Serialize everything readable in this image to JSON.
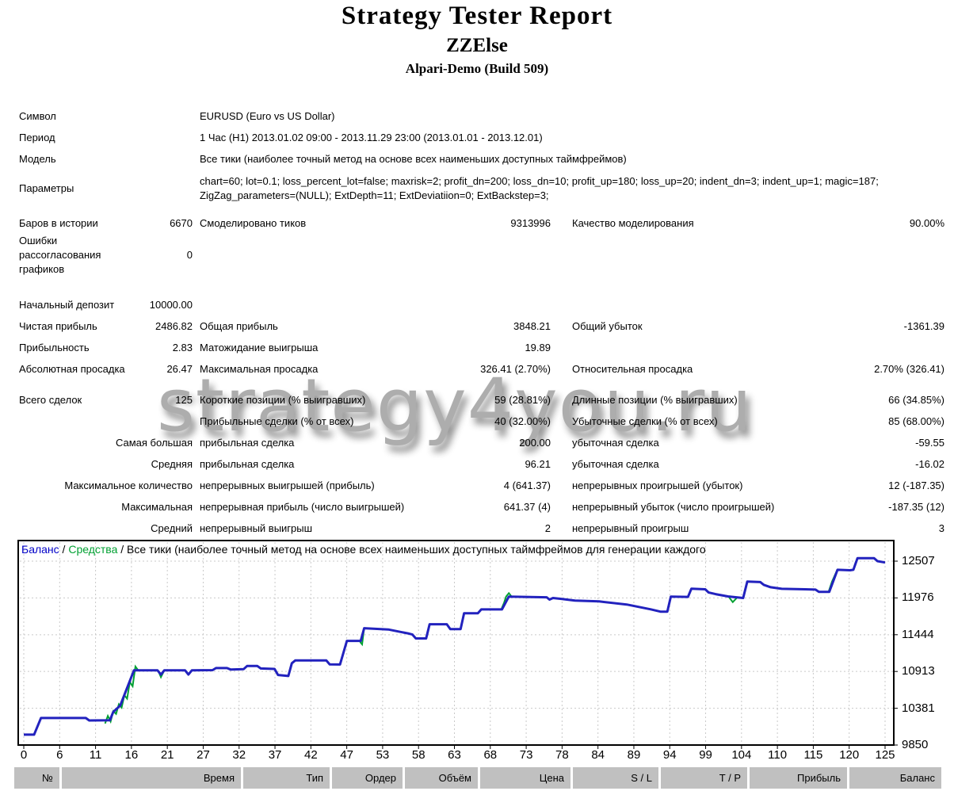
{
  "report": {
    "title": "Strategy Tester Report",
    "ea_name": "ZZElse",
    "server": "Alpari-Demo (Build 509)"
  },
  "watermark": "strategy4you.ru",
  "stats": {
    "sections": [
      {
        "rows": [
          {
            "l1": "Символ",
            "wide": "EURUSD (Euro vs US Dollar)"
          },
          {
            "l1": "Период",
            "wide": "1 Час (H1) 2013.01.02 09:00 - 2013.11.29 23:00 (2013.01.01 - 2013.12.01)"
          },
          {
            "l1": "Модель",
            "wide": "Все тики (наиболее точный метод на основе всех наименьших доступных таймфреймов)"
          },
          {
            "l1": "Параметры",
            "wide": "chart=60; lot=0.1; loss_percent_lot=false; maxrisk=2; profit_dn=200; loss_dn=10; profit_up=180; loss_up=20; indent_dn=3; indent_up=1; magic=187; ZigZag_parameters=(NULL); ExtDepth=11; ExtDeviatiion=0; ExtBackstep=3;",
            "h": 48,
            "widemulti": true
          }
        ]
      },
      {
        "rows": [
          {
            "l1": "Баров в истории",
            "v1": "6670",
            "l2": "Смоделировано тиков",
            "v2": "9313996",
            "l3": "Качество моделирования",
            "v3": "90.00%"
          },
          {
            "l1": "Ошибки рассогласования графиков",
            "v1": "0",
            "h": 54,
            "l1multi": true
          }
        ]
      },
      {
        "rows": [
          {
            "l1": "Начальный депозит",
            "v1": "10000.00"
          },
          {
            "l1": "Чистая прибыль",
            "v1": "2486.82",
            "l2": "Общая прибыль",
            "v2": "3848.21",
            "l3": "Общий убыток",
            "v3": "-1361.39"
          },
          {
            "l1": "Прибыльность",
            "v1": "2.83",
            "l2": "Матожидание выигрыша",
            "v2": "19.89"
          },
          {
            "l1": "Абсолютная просадка",
            "v1": "26.47",
            "l2": "Максимальная просадка",
            "v2": "326.41 (2.70%)",
            "l3": "Относительная просадка",
            "v3": "2.70% (326.41)"
          }
        ]
      },
      {
        "rows": [
          {
            "l1": "Всего сделок",
            "v1": "125",
            "l2": "Короткие позиции (% выигравших)",
            "v2": "59 (28.81%)",
            "l3": "Длинные позиции (% выигравших)",
            "v3": "66 (34.85%)"
          },
          {
            "l2": "Прибыльные сделки (% от всех)",
            "v2": "40 (32.00%)",
            "l3": "Убыточные сделки (% от всех)",
            "v3": "85 (68.00%)"
          },
          {
            "l1": "Самая большая",
            "l1r": true,
            "l2": "прибыльная сделка",
            "v2": "200.00",
            "l3": "убыточная сделка",
            "v3": "-59.55"
          },
          {
            "l1": "Средняя",
            "l1r": true,
            "l2": "прибыльная сделка",
            "v2": "96.21",
            "l3": "убыточная сделка",
            "v3": "-16.02"
          },
          {
            "l1": "Максимальное количество",
            "l1r": true,
            "l2": "непрерывных выигрышей (прибыль)",
            "v2": "4 (641.37)",
            "l3": "непрерывных проигрышей (убыток)",
            "v3": "12 (-187.35)"
          },
          {
            "l1": "Максимальная",
            "l1r": true,
            "l2": "непрерывная прибыль (число выигрышей)",
            "v2": "641.37 (4)",
            "l3": "непрерывный убыток (число проигрышей)",
            "v3": "-187.35 (12)"
          },
          {
            "l1": "Средний",
            "l1r": true,
            "l2": "непрерывный выигрыш",
            "v2": "2",
            "l3": "непрерывный проигрыш",
            "v3": "3"
          }
        ]
      }
    ]
  },
  "chart_data": {
    "type": "line",
    "legend": {
      "balance": "Баланс",
      "separator": " / ",
      "equity": "Средства",
      "model": "Все тики (наиболее точный метод на основе всех наименьших доступных таймфреймов для генерации каждого"
    },
    "colors": {
      "balance_line": "#2222be",
      "equity_line": "#00a032",
      "grid": "#c9c9c9",
      "border": "#000000",
      "legend_balance": "#0000c8",
      "legend_equity": "#00a032"
    },
    "x_ticks": [
      "0",
      "6",
      "11",
      "16",
      "21",
      "27",
      "32",
      "37",
      "42",
      "47",
      "53",
      "58",
      "63",
      "68",
      "73",
      "78",
      "84",
      "89",
      "94",
      "99",
      "104",
      "110",
      "115",
      "120",
      "125"
    ],
    "y_ticks": [
      12507,
      11976,
      11444,
      10913,
      10381,
      9850
    ],
    "x_range": [
      0,
      125
    ],
    "y_range": [
      9850,
      12792
    ],
    "series": [
      {
        "name": "Баланс",
        "points": [
          [
            0,
            10000
          ],
          [
            1.5,
            10000
          ],
          [
            2.5,
            10240
          ],
          [
            9,
            10240
          ],
          [
            9.5,
            10205
          ],
          [
            12.5,
            10208
          ],
          [
            13,
            10330
          ],
          [
            14,
            10420
          ],
          [
            16,
            10930
          ],
          [
            19.4,
            10930
          ],
          [
            19.9,
            10868
          ],
          [
            20.4,
            10930
          ],
          [
            23.4,
            10930
          ],
          [
            23.9,
            10868
          ],
          [
            24.4,
            10930
          ],
          [
            27.4,
            10932
          ],
          [
            27.9,
            10962
          ],
          [
            29.5,
            10962
          ],
          [
            30,
            10942
          ],
          [
            31.9,
            10946
          ],
          [
            32.4,
            10992
          ],
          [
            33.9,
            10992
          ],
          [
            34.4,
            10956
          ],
          [
            36.4,
            10950
          ],
          [
            36.9,
            10862
          ],
          [
            38.4,
            10848
          ],
          [
            38.9,
            11032
          ],
          [
            39.4,
            11072
          ],
          [
            43.9,
            11072
          ],
          [
            44.4,
            11016
          ],
          [
            45.9,
            11014
          ],
          [
            46.9,
            11355
          ],
          [
            48.9,
            11355
          ],
          [
            49.4,
            11538
          ],
          [
            52.9,
            11520
          ],
          [
            55.9,
            11460
          ],
          [
            56.4,
            11446
          ],
          [
            56.9,
            11390
          ],
          [
            58.4,
            11390
          ],
          [
            58.9,
            11595
          ],
          [
            61.4,
            11595
          ],
          [
            61.9,
            11526
          ],
          [
            63.4,
            11526
          ],
          [
            63.9,
            11754
          ],
          [
            65.9,
            11754
          ],
          [
            66.4,
            11810
          ],
          [
            69.4,
            11810
          ],
          [
            70.4,
            11995
          ],
          [
            75.9,
            11985
          ],
          [
            76.3,
            11952
          ],
          [
            76.8,
            11975
          ],
          [
            78,
            11962
          ],
          [
            80,
            11937
          ],
          [
            83.5,
            11925
          ],
          [
            87.5,
            11880
          ],
          [
            91,
            11811
          ],
          [
            92.4,
            11777
          ],
          [
            93.4,
            11777
          ],
          [
            93.9,
            11994
          ],
          [
            96.4,
            11990
          ],
          [
            96.9,
            12110
          ],
          [
            98.9,
            12100
          ],
          [
            99.4,
            12053
          ],
          [
            100.4,
            12030
          ],
          [
            102.2,
            11997
          ],
          [
            104.4,
            11975
          ],
          [
            105,
            12211
          ],
          [
            106.9,
            12205
          ],
          [
            107.4,
            12165
          ],
          [
            108.4,
            12130
          ],
          [
            110,
            12107
          ],
          [
            113.4,
            12100
          ],
          [
            114.9,
            12096
          ],
          [
            115.4,
            12064
          ],
          [
            116.9,
            12064
          ],
          [
            118.1,
            12382
          ],
          [
            119.9,
            12375
          ],
          [
            120.4,
            12382
          ],
          [
            121,
            12550
          ],
          [
            123.4,
            12550
          ],
          [
            123.9,
            12507
          ],
          [
            125,
            12487
          ]
        ]
      },
      {
        "name": "Средства",
        "segments": [
          [
            [
              11.8,
              10160
            ],
            [
              12.2,
              10270
            ],
            [
              12.6,
              10190
            ],
            [
              13,
              10340
            ],
            [
              13.4,
              10300
            ],
            [
              13.8,
              10440
            ],
            [
              14.2,
              10390
            ],
            [
              14.6,
              10570
            ],
            [
              15,
              10520
            ],
            [
              15.4,
              10760
            ],
            [
              15.8,
              10700
            ],
            [
              16.2,
              10985
            ],
            [
              16.6,
              10930
            ]
          ],
          [
            [
              19.5,
              10925
            ],
            [
              19.9,
              10830
            ],
            [
              20.4,
              10930
            ]
          ],
          [
            [
              48.8,
              11340
            ],
            [
              49.1,
              11305
            ],
            [
              49.4,
              11538
            ]
          ],
          [
            [
              69.3,
              11810
            ],
            [
              69.7,
              11905
            ],
            [
              70,
              11995
            ],
            [
              70.4,
              12045
            ],
            [
              70.8,
              11995
            ]
          ],
          [
            [
              102.3,
              11993
            ],
            [
              102.9,
              11915
            ],
            [
              103.5,
              11978
            ]
          ],
          [
            [
              116.8,
              12064
            ],
            [
              117.3,
              12210
            ],
            [
              118.1,
              12390
            ]
          ],
          [
            [
              120.4,
              12382
            ],
            [
              120.7,
              12480
            ],
            [
              121,
              12552
            ]
          ]
        ]
      }
    ]
  },
  "trade_table": {
    "columns": [
      "№",
      "Время",
      "Тип",
      "Ордер",
      "Объём",
      "Цена",
      "S / L",
      "T / P",
      "Прибыль",
      "Баланс"
    ]
  }
}
